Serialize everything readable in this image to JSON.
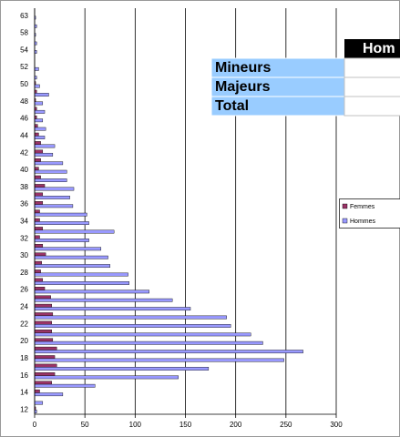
{
  "chart_data": {
    "type": "barh",
    "categories": [
      "12",
      null,
      "14",
      null,
      "16",
      null,
      "18",
      null,
      "20",
      null,
      "22",
      null,
      "24",
      null,
      "26",
      null,
      "28",
      null,
      "30",
      null,
      "32",
      null,
      "34",
      null,
      "36",
      null,
      "38",
      null,
      "40",
      null,
      "42",
      null,
      "44",
      null,
      "46",
      null,
      "48",
      null,
      "50",
      null,
      "52",
      null,
      "54",
      null,
      "58",
      null,
      "63"
    ],
    "series": [
      {
        "name": "Femmes",
        "color": "#993366",
        "values": [
          1,
          0,
          5,
          17,
          20,
          22,
          20,
          22,
          18,
          17,
          17,
          18,
          17,
          16,
          10,
          8,
          6,
          7,
          11,
          8,
          5,
          8,
          5,
          5,
          8,
          8,
          10,
          6,
          4,
          6,
          8,
          6,
          4,
          3,
          2,
          2,
          1,
          2,
          1,
          0,
          0,
          0,
          0,
          0,
          0,
          0,
          0
        ]
      },
      {
        "name": "Hommes",
        "color": "#9999ff",
        "values": [
          2,
          8,
          28,
          60,
          143,
          173,
          248,
          267,
          227,
          215,
          195,
          191,
          155,
          137,
          114,
          94,
          93,
          75,
          73,
          66,
          54,
          79,
          54,
          52,
          38,
          35,
          39,
          32,
          32,
          28,
          18,
          20,
          10,
          11,
          8,
          10,
          8,
          14,
          5,
          2,
          4,
          0,
          2,
          2,
          1,
          2,
          1
        ]
      }
    ],
    "xlim": [
      0,
      300
    ],
    "xticks": [
      0,
      50,
      100,
      150,
      200,
      250,
      300
    ],
    "grid": true
  },
  "table": {
    "header": "Hom",
    "rows": [
      "Mineurs",
      "Majeurs",
      "Total"
    ]
  }
}
